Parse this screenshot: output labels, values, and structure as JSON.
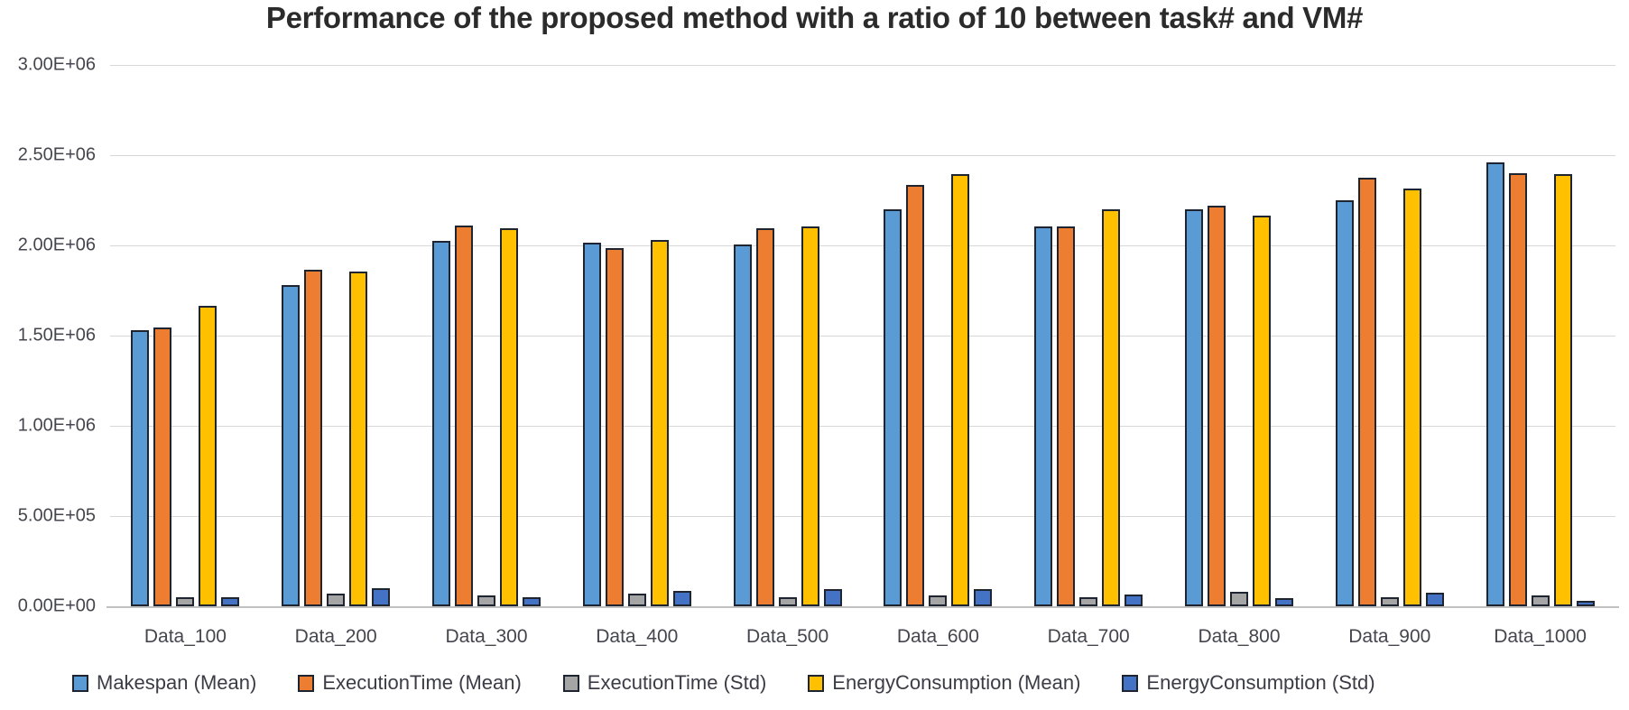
{
  "chart_data": {
    "type": "bar",
    "title": "Performance of the proposed method with a ratio of 10 between task# and VM#",
    "categories": [
      "Data_100",
      "Data_200",
      "Data_300",
      "Data_400",
      "Data_500",
      "Data_600",
      "Data_700",
      "Data_800",
      "Data_900",
      "Data_1000"
    ],
    "series": [
      {
        "name": "Makespan (Mean)",
        "color": "#5B9BD5",
        "values": [
          1530000,
          1780000,
          2025000,
          2015000,
          2005000,
          2200000,
          2105000,
          2200000,
          2250000,
          2460000
        ]
      },
      {
        "name": "ExecutionTime (Mean)",
        "color": "#ED7D31",
        "values": [
          1545000,
          1865000,
          2110000,
          1985000,
          2095000,
          2335000,
          2105000,
          2220000,
          2375000,
          2400000
        ]
      },
      {
        "name": "ExecutionTime (Std)",
        "color": "#A5A5A5",
        "values": [
          50000,
          70000,
          60000,
          70000,
          50000,
          60000,
          50000,
          80000,
          50000,
          60000
        ]
      },
      {
        "name": "EnergyConsumption (Mean)",
        "color": "#FFC000",
        "values": [
          1665000,
          1855000,
          2095000,
          2030000,
          2105000,
          2395000,
          2200000,
          2165000,
          2315000,
          2395000
        ]
      },
      {
        "name": "EnergyConsumption (Std)",
        "color": "#4472C4",
        "values": [
          50000,
          100000,
          50000,
          85000,
          95000,
          95000,
          65000,
          45000,
          75000,
          30000
        ]
      }
    ],
    "ylim": [
      0,
      3000000
    ],
    "y_ticks": [
      {
        "label": "0.00E+00",
        "value": 0
      },
      {
        "label": "5.00E+05",
        "value": 500000
      },
      {
        "label": "1.00E+06",
        "value": 1000000
      },
      {
        "label": "1.50E+06",
        "value": 1500000
      },
      {
        "label": "2.00E+06",
        "value": 2000000
      },
      {
        "label": "2.50E+06",
        "value": 2500000
      },
      {
        "label": "3.00E+06",
        "value": 3000000
      }
    ],
    "grid": "horizontal",
    "legend_position": "bottom",
    "xlabel": "",
    "ylabel": ""
  }
}
